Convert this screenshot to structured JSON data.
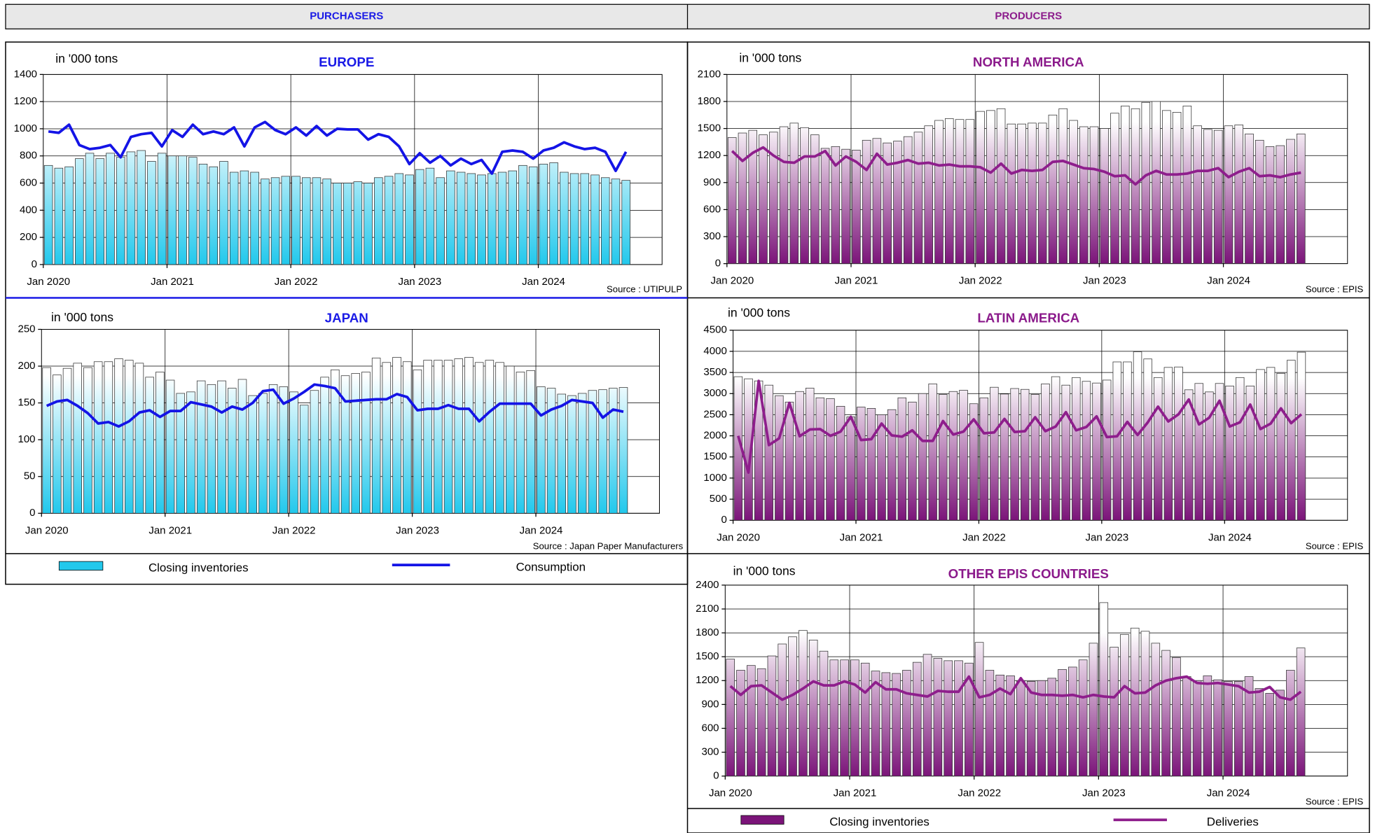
{
  "header": {
    "purchasers": "PURCHASERS",
    "producers": "PRODUCERS"
  },
  "chart_data": [
    {
      "type": "combo",
      "title": "EUROPE",
      "ylabel": "in '000 tons",
      "source": "Source : UTIPULP",
      "categories": [
        "Jan 2020",
        null,
        null,
        null,
        null,
        null,
        null,
        null,
        null,
        null,
        null,
        null,
        "Jan 2021",
        null,
        null,
        null,
        null,
        null,
        null,
        null,
        null,
        null,
        null,
        null,
        "Jan 2022",
        null,
        null,
        null,
        null,
        null,
        null,
        null,
        null,
        null,
        null,
        null,
        "Jan 2023",
        null,
        null,
        null,
        null,
        null,
        null,
        null,
        null,
        null,
        null,
        null,
        "Jan 2024",
        null,
        null,
        null,
        null,
        null,
        null,
        null,
        null
      ],
      "series": [
        {
          "type": "bar",
          "color": "#22c8ec",
          "values": [
            730,
            710,
            720,
            780,
            820,
            780,
            820,
            790,
            830,
            840,
            760,
            820,
            800,
            800,
            790,
            740,
            720,
            760,
            680,
            690,
            680,
            630,
            640,
            650,
            650,
            640,
            640,
            630,
            600,
            600,
            610,
            600,
            640,
            650,
            670,
            660,
            700,
            710,
            640,
            690,
            680,
            670,
            660,
            670,
            680,
            690,
            730,
            720,
            740,
            750,
            680,
            670,
            670,
            660,
            640,
            630,
            620
          ]
        },
        {
          "type": "line",
          "color": "#1414e6",
          "values": [
            980,
            970,
            1030,
            880,
            850,
            860,
            880,
            790,
            940,
            960,
            970,
            870,
            990,
            940,
            1030,
            960,
            980,
            960,
            1010,
            870,
            1010,
            1050,
            990,
            960,
            1010,
            950,
            1020,
            950,
            1000,
            995,
            995,
            920,
            960,
            940,
            870,
            740,
            820,
            750,
            800,
            730,
            780,
            740,
            770,
            670,
            830,
            840,
            830,
            780,
            840,
            860,
            900,
            870,
            850,
            860,
            830,
            690,
            830
          ]
        }
      ],
      "ylim": [
        0,
        1400
      ],
      "yticks": [
        0,
        200,
        400,
        600,
        800,
        1000,
        1200,
        1400
      ],
      "grid": true
    },
    {
      "type": "combo",
      "title": "JAPAN",
      "ylabel": "in '000 tons",
      "source": "Source : Japan Paper Manufacturers",
      "categories": [
        "Jan 2020",
        null,
        null,
        null,
        null,
        null,
        null,
        null,
        null,
        null,
        null,
        null,
        "Jan 2021",
        null,
        null,
        null,
        null,
        null,
        null,
        null,
        null,
        null,
        null,
        null,
        "Jan 2022",
        null,
        null,
        null,
        null,
        null,
        null,
        null,
        null,
        null,
        null,
        null,
        "Jan 2023",
        null,
        null,
        null,
        null,
        null,
        null,
        null,
        null,
        null,
        null,
        null,
        "Jan 2024",
        null,
        null,
        null,
        null,
        null,
        null,
        null,
        null
      ],
      "series": [
        {
          "type": "bar",
          "name": "Closing inventories",
          "color": "#22c8ec",
          "values": [
            198,
            188,
            197,
            204,
            198,
            206,
            206,
            210,
            208,
            204,
            185,
            192,
            181,
            163,
            165,
            180,
            175,
            180,
            170,
            182,
            160,
            163,
            175,
            172,
            165,
            147,
            167,
            185,
            195,
            187,
            190,
            192,
            211,
            205,
            212,
            206,
            195,
            208,
            208,
            208,
            210,
            212,
            205,
            208,
            205,
            200,
            192,
            194,
            172,
            170,
            162,
            160,
            163,
            167,
            168,
            170,
            171
          ]
        },
        {
          "type": "line",
          "name": "Consumption",
          "color": "#1414e6",
          "values": [
            146,
            152,
            154,
            146,
            136,
            122,
            124,
            118,
            125,
            137,
            140,
            131,
            139,
            139,
            151,
            148,
            145,
            137,
            145,
            141,
            150,
            166,
            168,
            149,
            156,
            165,
            175,
            173,
            170,
            152,
            153,
            154,
            155,
            155,
            162,
            158,
            140,
            142,
            142,
            147,
            142,
            142,
            125,
            138,
            149,
            149,
            149,
            149,
            133,
            141,
            146,
            154,
            152,
            150,
            130,
            141,
            138
          ]
        }
      ],
      "ylim": [
        0,
        250
      ],
      "yticks": [
        0,
        50,
        100,
        150,
        200,
        250
      ],
      "grid": true
    },
    {
      "type": "combo",
      "title": "NORTH AMERICA",
      "ylabel": "in '000 tons",
      "source": "Source : EPIS",
      "categories": [
        "Jan 2020",
        null,
        null,
        null,
        null,
        null,
        null,
        null,
        null,
        null,
        null,
        null,
        "Jan 2021",
        null,
        null,
        null,
        null,
        null,
        null,
        null,
        null,
        null,
        null,
        null,
        "Jan 2022",
        null,
        null,
        null,
        null,
        null,
        null,
        null,
        null,
        null,
        null,
        null,
        "Jan 2023",
        null,
        null,
        null,
        null,
        null,
        null,
        null,
        null,
        null,
        null,
        null,
        "Jan 2024",
        null,
        null,
        null,
        null,
        null,
        null,
        null
      ],
      "series": [
        {
          "type": "bar",
          "color": "#7b1479",
          "values": [
            1400,
            1450,
            1480,
            1430,
            1460,
            1520,
            1560,
            1510,
            1430,
            1280,
            1300,
            1270,
            1260,
            1370,
            1390,
            1340,
            1360,
            1410,
            1460,
            1530,
            1590,
            1610,
            1600,
            1600,
            1690,
            1700,
            1720,
            1550,
            1550,
            1560,
            1560,
            1650,
            1720,
            1590,
            1520,
            1520,
            1500,
            1670,
            1750,
            1720,
            1790,
            1800,
            1700,
            1680,
            1750,
            1530,
            1490,
            1480,
            1530,
            1540,
            1440,
            1370,
            1300,
            1310,
            1380,
            1440
          ]
        },
        {
          "type": "line",
          "color": "#8e1e8c",
          "values": [
            1250,
            1140,
            1230,
            1290,
            1200,
            1130,
            1120,
            1190,
            1190,
            1250,
            1090,
            1190,
            1130,
            1040,
            1220,
            1100,
            1120,
            1150,
            1110,
            1120,
            1090,
            1100,
            1080,
            1080,
            1070,
            1010,
            1110,
            1000,
            1040,
            1030,
            1040,
            1130,
            1140,
            1100,
            1060,
            1050,
            1020,
            970,
            980,
            880,
            980,
            1030,
            990,
            990,
            1000,
            1030,
            1030,
            1060,
            960,
            1020,
            1060,
            970,
            980,
            960,
            990,
            1010
          ]
        }
      ],
      "ylim": [
        0,
        2100
      ],
      "yticks": [
        0,
        300,
        600,
        900,
        1200,
        1500,
        1800,
        2100
      ],
      "grid": true
    },
    {
      "type": "combo",
      "title": "LATIN AMERICA",
      "ylabel": "in '000 tons",
      "source": "Source : EPIS",
      "categories": [
        "Jan 2020",
        null,
        null,
        null,
        null,
        null,
        null,
        null,
        null,
        null,
        null,
        null,
        "Jan 2021",
        null,
        null,
        null,
        null,
        null,
        null,
        null,
        null,
        null,
        null,
        null,
        "Jan 2022",
        null,
        null,
        null,
        null,
        null,
        null,
        null,
        null,
        null,
        null,
        null,
        "Jan 2023",
        null,
        null,
        null,
        null,
        null,
        null,
        null,
        null,
        null,
        null,
        null,
        "Jan 2024",
        null,
        null,
        null,
        null,
        null,
        null,
        null
      ],
      "series": [
        {
          "type": "bar",
          "color": "#7b1479",
          "values": [
            3400,
            3350,
            3300,
            3200,
            2950,
            2800,
            3050,
            3130,
            2900,
            2880,
            2700,
            2450,
            2680,
            2650,
            2500,
            2620,
            2900,
            2800,
            3000,
            3230,
            2980,
            3050,
            3080,
            2760,
            2900,
            3150,
            2990,
            3120,
            3100,
            2980,
            3230,
            3400,
            3200,
            3380,
            3290,
            3250,
            3320,
            3750,
            3750,
            3990,
            3820,
            3380,
            3620,
            3630,
            3090,
            3240,
            3040,
            3240,
            3180,
            3380,
            3180,
            3570,
            3620,
            3480,
            3790,
            3980
          ]
        },
        {
          "type": "line",
          "color": "#8e1e8c",
          "values": [
            2000,
            1130,
            3300,
            1780,
            1940,
            2780,
            1990,
            2150,
            2160,
            2000,
            2100,
            2450,
            1900,
            1920,
            2290,
            2010,
            1980,
            2130,
            1880,
            1880,
            2350,
            2030,
            2100,
            2390,
            2060,
            2080,
            2400,
            2090,
            2110,
            2440,
            2110,
            2220,
            2560,
            2130,
            2210,
            2460,
            1970,
            1990,
            2330,
            2020,
            2320,
            2690,
            2340,
            2510,
            2860,
            2270,
            2430,
            2830,
            2220,
            2320,
            2740,
            2160,
            2290,
            2650,
            2300,
            2510
          ]
        }
      ],
      "ylim": [
        0,
        4500
      ],
      "yticks": [
        0,
        500,
        1000,
        1500,
        2000,
        2500,
        3000,
        3500,
        4000,
        4500
      ],
      "grid": true
    },
    {
      "type": "combo",
      "title": "OTHER EPIS COUNTRIES",
      "ylabel": "in '000 tons",
      "source": "Source : EPIS",
      "categories": [
        "Jan 2020",
        null,
        null,
        null,
        null,
        null,
        null,
        null,
        null,
        null,
        null,
        null,
        "Jan 2021",
        null,
        null,
        null,
        null,
        null,
        null,
        null,
        null,
        null,
        null,
        null,
        "Jan 2022",
        null,
        null,
        null,
        null,
        null,
        null,
        null,
        null,
        null,
        null,
        null,
        "Jan 2023",
        null,
        null,
        null,
        null,
        null,
        null,
        null,
        null,
        null,
        null,
        null,
        "Jan 2024",
        null,
        null,
        null,
        null,
        null,
        null,
        null
      ],
      "series": [
        {
          "type": "bar",
          "name": "Closing inventories",
          "color": "#7b1479",
          "values": [
            1470,
            1330,
            1390,
            1350,
            1510,
            1660,
            1750,
            1830,
            1710,
            1570,
            1460,
            1460,
            1460,
            1420,
            1320,
            1300,
            1290,
            1330,
            1430,
            1530,
            1480,
            1450,
            1450,
            1420,
            1680,
            1330,
            1270,
            1260,
            1200,
            1190,
            1200,
            1230,
            1340,
            1370,
            1460,
            1670,
            2180,
            1620,
            1780,
            1860,
            1820,
            1670,
            1580,
            1490,
            1250,
            1200,
            1260,
            1210,
            1190,
            1190,
            1250,
            1100,
            1040,
            1080,
            1330,
            1610
          ]
        },
        {
          "type": "line",
          "name": "Deliveries",
          "color": "#8e1e8c",
          "values": [
            1130,
            1020,
            1130,
            1140,
            1050,
            960,
            1020,
            1100,
            1190,
            1140,
            1140,
            1190,
            1150,
            1050,
            1180,
            1090,
            1090,
            1040,
            1020,
            1000,
            1070,
            1060,
            1060,
            1250,
            990,
            1020,
            1100,
            1030,
            1230,
            1050,
            1020,
            1020,
            1010,
            1020,
            990,
            1020,
            1000,
            990,
            1130,
            1040,
            1050,
            1140,
            1200,
            1230,
            1250,
            1170,
            1160,
            1170,
            1150,
            1130,
            1050,
            1060,
            1120,
            990,
            960,
            1060
          ]
        }
      ],
      "ylim": [
        0,
        2400
      ],
      "yticks": [
        0,
        300,
        600,
        900,
        1200,
        1500,
        1800,
        2100,
        2400
      ],
      "grid": true
    }
  ]
}
